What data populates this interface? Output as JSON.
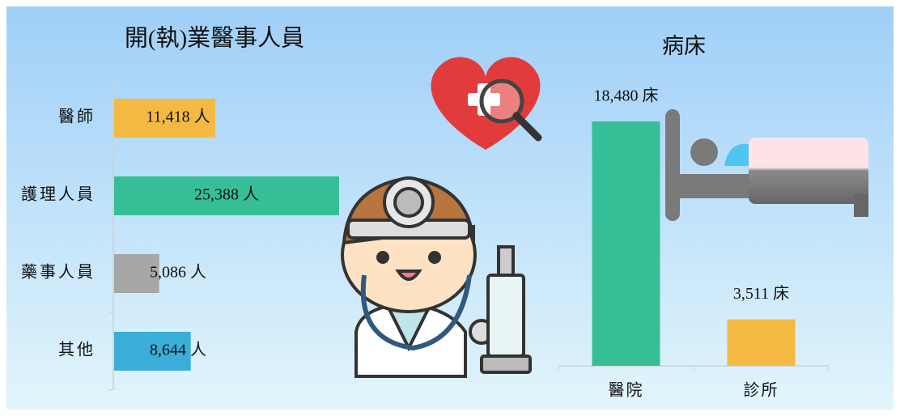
{
  "chart_data": [
    {
      "type": "hbar",
      "title": "開(執)業醫事人員",
      "categories": [
        "醫師",
        "護理人員",
        "藥事人員",
        "其他"
      ],
      "values": [
        11418,
        25388,
        5086,
        8644
      ],
      "value_labels": [
        "11,418 人",
        "25,388 人",
        "5,086 人",
        "8,644 人"
      ],
      "colors": [
        "#f4b942",
        "#36bf97",
        "#a6a6a6",
        "#3aaed8"
      ]
    },
    {
      "type": "bar",
      "title": "病床",
      "categories": [
        "醫院",
        "診所"
      ],
      "values": [
        18480,
        3511
      ],
      "value_labels": [
        "18,480 床",
        "3,511 床"
      ],
      "colors": [
        "#36bf97",
        "#f4b942"
      ]
    }
  ]
}
